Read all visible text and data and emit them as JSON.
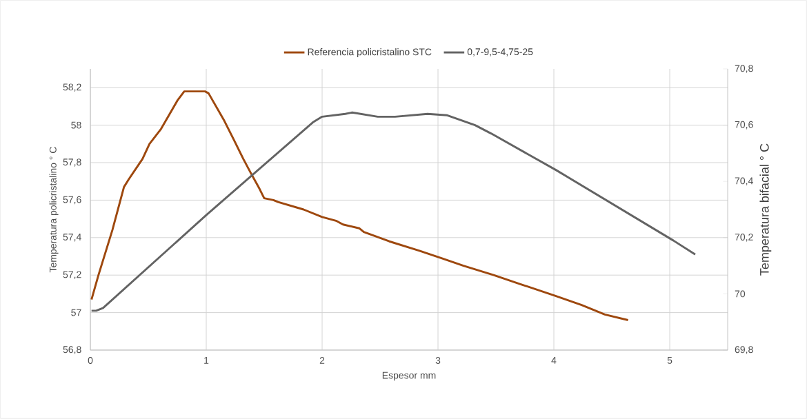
{
  "chart_data": {
    "type": "line",
    "xlabel": "Espesor mm",
    "ylabel": "Temperatura policristalino ° C",
    "y2label": "Temperatura bifacial ° C",
    "xlim": [
      0,
      5.5
    ],
    "xticks": [
      0,
      1,
      2,
      3,
      4,
      5
    ],
    "ylim": [
      56.8,
      58.3
    ],
    "yticks": [
      {
        "value": 56.8,
        "label": "56,8"
      },
      {
        "value": 57,
        "label": "57"
      },
      {
        "value": 57.2,
        "label": "57,2"
      },
      {
        "value": 57.4,
        "label": "57,4"
      },
      {
        "value": 57.6,
        "label": "57,6"
      },
      {
        "value": 57.8,
        "label": "57,8"
      },
      {
        "value": 58,
        "label": "58"
      },
      {
        "value": 58.2,
        "label": "58,2"
      }
    ],
    "y2lim": [
      69.8,
      70.8
    ],
    "y2ticks": [
      {
        "value": 69.8,
        "label": "69,8"
      },
      {
        "value": 70,
        "label": "70"
      },
      {
        "value": 70.2,
        "label": "70,2"
      },
      {
        "value": 70.4,
        "label": "70,4"
      },
      {
        "value": 70.6,
        "label": "70,6"
      },
      {
        "value": 70.8,
        "label": "70,8"
      }
    ],
    "grid": true,
    "legend": "top",
    "marker": "none",
    "line_style": "solid",
    "series": [
      {
        "name": "Referencia policristalino STC",
        "color": "#9e480e",
        "x": [
          0.01,
          0.07,
          0.19,
          0.29,
          0.33,
          0.45,
          0.51,
          0.61,
          0.75,
          0.81,
          0.99,
          1.02,
          1.15,
          1.24,
          1.32,
          1.38,
          1.46,
          1.5,
          1.58,
          1.62,
          1.84,
          1.92,
          2.0,
          2.12,
          2.18,
          2.32,
          2.36,
          2.58,
          2.84,
          3.03,
          3.22,
          3.48,
          3.72,
          4.01,
          4.24,
          4.44,
          4.64
        ],
        "values": [
          57.07,
          57.2,
          57.44,
          57.67,
          57.71,
          57.82,
          57.9,
          57.98,
          58.13,
          58.18,
          58.18,
          58.17,
          58.03,
          57.92,
          57.82,
          57.75,
          57.66,
          57.61,
          57.6,
          57.59,
          57.55,
          57.53,
          57.51,
          57.49,
          57.47,
          57.45,
          57.43,
          57.38,
          57.33,
          57.29,
          57.25,
          57.2,
          57.15,
          57.09,
          57.04,
          56.99,
          56.96
        ]
      },
      {
        "name": "0,7-9,5-4,75-25",
        "color": "#636363",
        "axis": "y2",
        "x": [
          0.01,
          0.05,
          0.11,
          1.0,
          1.92,
          2.0,
          2.2,
          2.26,
          2.48,
          2.63,
          2.91,
          3.08,
          3.32,
          3.46,
          4.02,
          5.03,
          5.22
        ],
        "values": [
          69.94,
          69.94,
          69.95,
          70.28,
          70.61,
          70.63,
          70.64,
          70.645,
          70.63,
          70.63,
          70.64,
          70.635,
          70.6,
          70.57,
          70.44,
          70.19,
          70.14
        ]
      }
    ]
  }
}
